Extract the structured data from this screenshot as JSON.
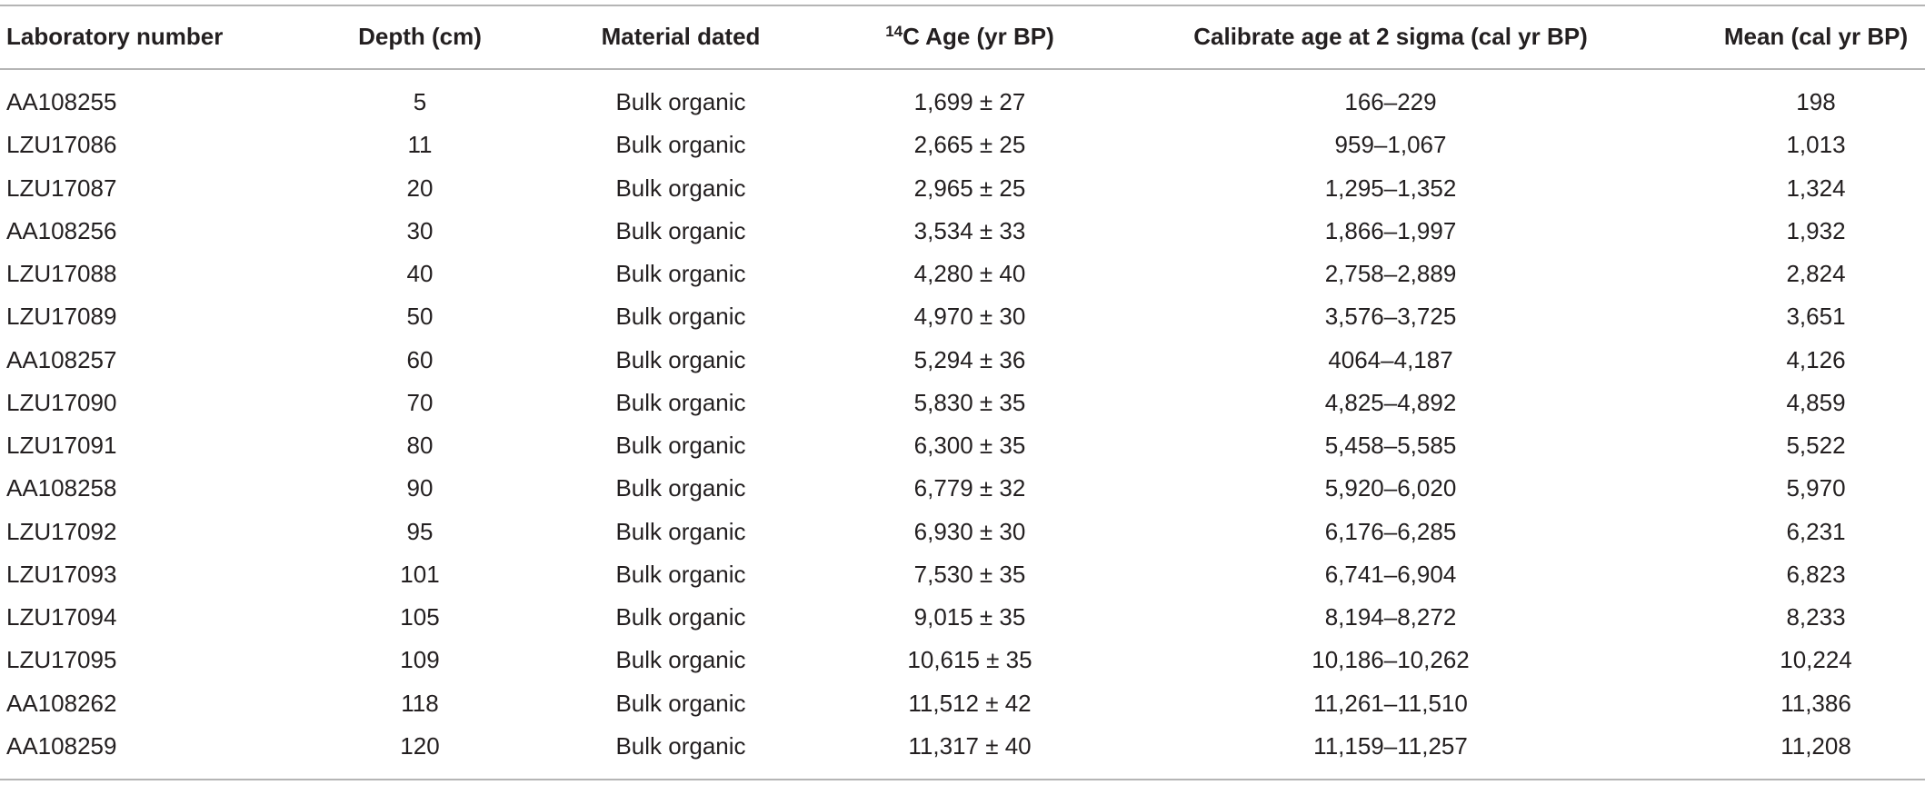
{
  "table": {
    "columns": [
      {
        "label": "Laboratory number"
      },
      {
        "label": "Depth (cm)"
      },
      {
        "label": "Material dated"
      },
      {
        "superscript": "14",
        "label": "C Age (yr BP)"
      },
      {
        "label": "Calibrate age at 2 sigma (cal yr BP)"
      },
      {
        "label": "Mean (cal yr BP)"
      }
    ],
    "rows": [
      [
        "AA108255",
        "5",
        "Bulk organic",
        "1,699 ± 27",
        "166–229",
        "198"
      ],
      [
        "LZU17086",
        "11",
        "Bulk organic",
        "2,665 ± 25",
        "959–1,067",
        "1,013"
      ],
      [
        "LZU17087",
        "20",
        "Bulk organic",
        "2,965 ± 25",
        "1,295–1,352",
        "1,324"
      ],
      [
        "AA108256",
        "30",
        "Bulk organic",
        "3,534 ± 33",
        "1,866–1,997",
        "1,932"
      ],
      [
        "LZU17088",
        "40",
        "Bulk organic",
        "4,280 ± 40",
        "2,758–2,889",
        "2,824"
      ],
      [
        "LZU17089",
        "50",
        "Bulk organic",
        "4,970 ± 30",
        "3,576–3,725",
        "3,651"
      ],
      [
        "AA108257",
        "60",
        "Bulk organic",
        "5,294 ± 36",
        "4064–4,187",
        "4,126"
      ],
      [
        "LZU17090",
        "70",
        "Bulk organic",
        "5,830 ± 35",
        "4,825–4,892",
        "4,859"
      ],
      [
        "LZU17091",
        "80",
        "Bulk organic",
        "6,300 ± 35",
        "5,458–5,585",
        "5,522"
      ],
      [
        "AA108258",
        "90",
        "Bulk organic",
        "6,779 ± 32",
        "5,920–6,020",
        "5,970"
      ],
      [
        "LZU17092",
        "95",
        "Bulk organic",
        "6,930 ± 30",
        "6,176–6,285",
        "6,231"
      ],
      [
        "LZU17093",
        "101",
        "Bulk organic",
        "7,530 ± 35",
        "6,741–6,904",
        "6,823"
      ],
      [
        "LZU17094",
        "105",
        "Bulk organic",
        "9,015 ± 35",
        "8,194–8,272",
        "8,233"
      ],
      [
        "LZU17095",
        "109",
        "Bulk organic",
        "10,615 ± 35",
        "10,186–10,262",
        "10,224"
      ],
      [
        "AA108262",
        "118",
        "Bulk organic",
        "11,512 ± 42",
        "11,261–11,510",
        "11,386"
      ],
      [
        "AA108259",
        "120",
        "Bulk organic",
        "11,317 ± 40",
        "11,159–11,257",
        "11,208"
      ]
    ]
  }
}
